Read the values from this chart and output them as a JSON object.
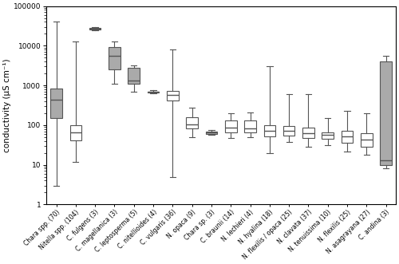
{
  "taxa": [
    "Chara spp. (70)",
    "Nitella spp. (104)",
    "C. fulgens (3)",
    "C. magellanica (3)",
    "C. leptosperma (5)",
    "C. nitellioides (4)",
    "C. vulgaris (36)",
    "N. opaca (9)",
    "Chara sp. (3)",
    "C. braunii (14)",
    "N. lechieri (4)",
    "N. hyalina (18)",
    "N. flexilis / opaca (25)",
    "N. clavata (37)",
    "N. tenuissima (10)",
    "N. flexilis (25)",
    "N. asagrayana (27)",
    "C. andina (3)"
  ],
  "gray_indices": [
    0,
    2,
    3,
    4,
    5,
    8,
    17
  ],
  "stats": [
    {
      "whislo": 3,
      "q1": 150,
      "med": 430,
      "q3": 830,
      "whishi": 40000
    },
    {
      "whislo": 12,
      "q1": 42,
      "med": 65,
      "q3": 100,
      "whishi": 13000
    },
    {
      "whislo": 24000,
      "q1": 25500,
      "med": 27000,
      "q3": 28500,
      "whishi": 30000
    },
    {
      "whislo": 1100,
      "q1": 2500,
      "med": 5500,
      "q3": 9500,
      "whishi": 13000
    },
    {
      "whislo": 700,
      "q1": 1100,
      "med": 1300,
      "q3": 2800,
      "whishi": 3200
    },
    {
      "whislo": 620,
      "q1": 650,
      "med": 680,
      "q3": 710,
      "whishi": 750
    },
    {
      "whislo": 5,
      "q1": 420,
      "med": 580,
      "q3": 730,
      "whishi": 8000
    },
    {
      "whislo": 50,
      "q1": 82,
      "med": 105,
      "q3": 160,
      "whishi": 280
    },
    {
      "whislo": 57,
      "q1": 60,
      "med": 65,
      "q3": 68,
      "whishi": 75
    },
    {
      "whislo": 48,
      "q1": 65,
      "med": 88,
      "q3": 130,
      "whishi": 200
    },
    {
      "whislo": 50,
      "q1": 65,
      "med": 82,
      "q3": 130,
      "whishi": 210
    },
    {
      "whislo": 20,
      "q1": 52,
      "med": 72,
      "q3": 100,
      "whishi": 3000
    },
    {
      "whislo": 38,
      "q1": 55,
      "med": 72,
      "q3": 95,
      "whishi": 600
    },
    {
      "whislo": 28,
      "q1": 47,
      "med": 62,
      "q3": 85,
      "whishi": 600
    },
    {
      "whislo": 32,
      "q1": 45,
      "med": 57,
      "q3": 67,
      "whishi": 150
    },
    {
      "whislo": 22,
      "q1": 36,
      "med": 52,
      "q3": 72,
      "whishi": 230
    },
    {
      "whislo": 18,
      "q1": 28,
      "med": 43,
      "q3": 62,
      "whishi": 200
    },
    {
      "whislo": 8,
      "q1": 10,
      "med": 13,
      "q3": 4000,
      "whishi": 5500
    }
  ],
  "ylabel": "conductivity (μS cm⁻¹)",
  "ylim": [
    1,
    100000
  ],
  "yticks": [
    1,
    10,
    100,
    1000,
    10000,
    100000
  ],
  "ytick_labels": [
    "1",
    "10",
    "100",
    "1000",
    "10000",
    "100000"
  ],
  "gray_color": "#aaaaaa",
  "white_color": "#ffffff",
  "edge_color": "#555555",
  "figsize": [
    5.0,
    3.31
  ],
  "dpi": 100,
  "box_width": 0.6,
  "label_fontsize": 5.5,
  "ylabel_fontsize": 7.5,
  "ytick_fontsize": 6.5
}
